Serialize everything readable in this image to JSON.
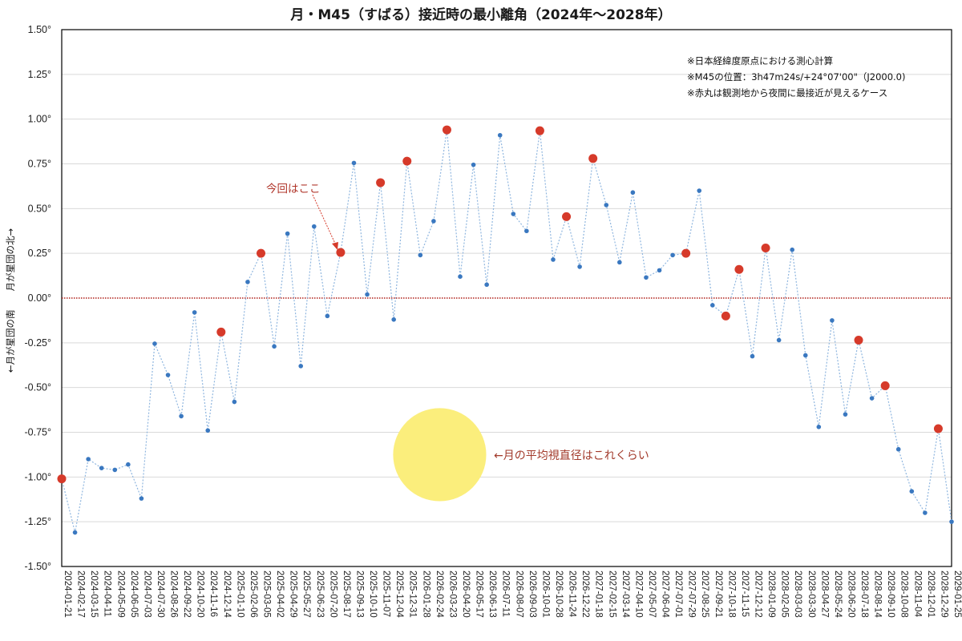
{
  "title": "月・M45（すばる）接近時の最小離角（2024年〜2028年）",
  "notes": [
    "※日本経緯度原点における測心計算",
    "※M45の位置：3h47m24s/+24°07'00\"（J2000.0)",
    "※赤丸は観測地から夜間に最接近が見えるケース"
  ],
  "y_axis_label": "←月が星団の南　　月が星団の北→",
  "annotations": {
    "current": "今回はここ",
    "moon_size": "←月の平均視直径はこれくらい"
  },
  "colors": {
    "series_point": "#3a78c0",
    "series_line": "#8fb6df",
    "highlight": "#d63a2a",
    "zero_line": "#b0201a",
    "moon": "#fbee7c",
    "grid": "#d9d9d9"
  },
  "chart_data": {
    "type": "line",
    "title": "月・M45（すばる）接近時の最小離角（2024年〜2028年）",
    "xlabel": "",
    "ylabel": "←月が星団の南　　月が星団の北→",
    "ylim": [
      -1.5,
      1.5
    ],
    "yticks": [
      "1.50°",
      "1.25°",
      "1.00°",
      "0.75°",
      "0.50°",
      "0.25°",
      "0.00°",
      "-0.25°",
      "-0.50°",
      "-0.75°",
      "-1.00°",
      "-1.25°",
      "-1.50°"
    ],
    "grid": true,
    "legend": null,
    "categories": [
      "2024-01-21",
      "2024-02-17",
      "2024-03-15",
      "2024-04-11",
      "2024-05-09",
      "2024-06-05",
      "2024-07-03",
      "2024-07-30",
      "2024-08-26",
      "2024-09-22",
      "2024-10-20",
      "2024-11-16",
      "2024-12-14",
      "2025-01-10",
      "2025-02-06",
      "2025-03-05",
      "2025-04-02",
      "2025-04-29",
      "2025-05-27",
      "2025-06-23",
      "2025-07-20",
      "2025-08-17",
      "2025-09-13",
      "2025-10-10",
      "2025-11-07",
      "2025-12-04",
      "2025-12-31",
      "2026-01-28",
      "2026-02-24",
      "2026-03-23",
      "2026-04-20",
      "2026-05-17",
      "2026-06-13",
      "2026-07-11",
      "2026-08-07",
      "2026-09-03",
      "2026-10-01",
      "2026-10-28",
      "2026-11-24",
      "2026-12-22",
      "2027-01-18",
      "2027-02-15",
      "2027-03-14",
      "2027-04-10",
      "2027-05-07",
      "2027-06-04",
      "2027-07-01",
      "2027-07-29",
      "2027-08-25",
      "2027-09-21",
      "2027-10-18",
      "2027-11-15",
      "2027-12-12",
      "2028-01-09",
      "2028-02-05",
      "2028-03-03",
      "2028-03-30",
      "2028-04-27",
      "2028-05-24",
      "2028-06-20",
      "2028-07-18",
      "2028-08-14",
      "2028-09-10",
      "2028-10-08",
      "2028-11-04",
      "2028-12-01",
      "2028-12-29",
      "2029-01-25"
    ],
    "series": [
      {
        "name": "最小離角",
        "values": [
          -1.01,
          -1.31,
          -0.9,
          -0.95,
          -0.96,
          -0.93,
          -1.12,
          -0.255,
          -0.43,
          -0.66,
          -0.08,
          -0.74,
          -0.19,
          -0.58,
          0.09,
          0.25,
          -0.27,
          0.36,
          -0.38,
          0.4,
          -0.1,
          0.255,
          0.755,
          0.02,
          0.645,
          -0.12,
          0.765,
          0.24,
          0.43,
          0.94,
          0.12,
          0.745,
          0.075,
          0.91,
          0.47,
          0.375,
          0.935,
          0.215,
          0.455,
          0.175,
          0.78,
          0.52,
          0.2,
          0.59,
          0.115,
          0.155,
          0.24,
          0.25,
          0.6,
          -0.04,
          -0.1,
          0.16,
          -0.325,
          0.28,
          -0.235,
          0.27,
          -0.32,
          -0.72,
          -0.125,
          -0.65,
          -0.235,
          -0.56,
          -0.49,
          -0.845,
          -1.08,
          -1.2,
          -0.73,
          -1.25
        ]
      }
    ],
    "highlighted_indices": [
      0,
      12,
      15,
      21,
      24,
      26,
      29,
      36,
      38,
      40,
      47,
      50,
      51,
      53,
      60,
      62,
      66
    ],
    "current_index": 21,
    "reference_line": {
      "y": 0.0,
      "style": "dotted",
      "color": "#b0201a"
    },
    "moon_diameter_reference": {
      "center_category": "2026-03-23",
      "center_y": -0.875,
      "diameter_deg": 0.52
    }
  }
}
